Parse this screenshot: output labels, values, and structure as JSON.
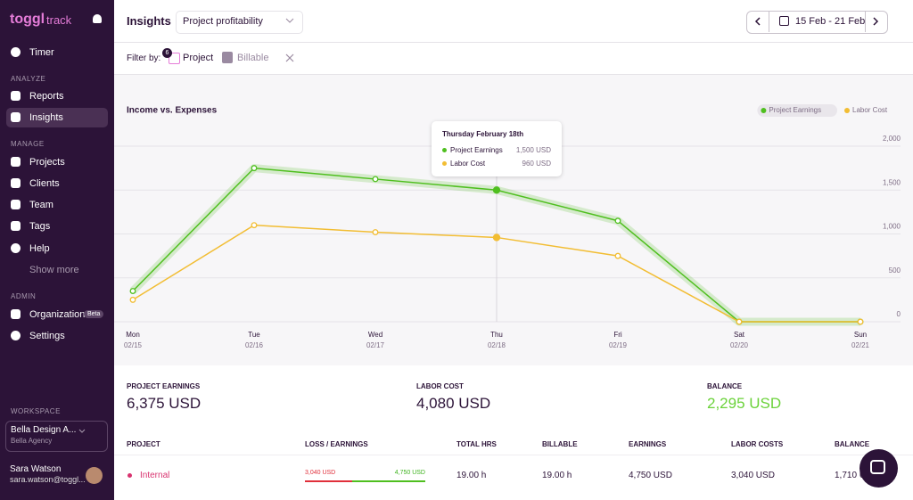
{
  "sidebar": {
    "logo": "toggl",
    "logo_sub": "track",
    "timer": "Timer",
    "sections": [
      {
        "title": "ANALYZE",
        "items": [
          "Reports",
          "Insights"
        ]
      },
      {
        "title": "MANAGE",
        "items": [
          "Projects",
          "Clients",
          "Team",
          "Tags",
          "Help",
          "Show more"
        ]
      },
      {
        "title": "ADMIN",
        "items": [
          "Organization",
          "Settings"
        ]
      }
    ],
    "beta": "Beta",
    "workspace_label": "WORKSPACE",
    "workspace_name": "Bella Design A...",
    "workspace_org": "Bella Agency",
    "user_name": "Sara Watson",
    "user_email": "sara.watson@toggl..."
  },
  "header": {
    "title": "Insights",
    "report": "Project profitability",
    "date_range": "15 Feb - 21 Feb",
    "filter_label": "Filter by:",
    "filter_count": "6",
    "filter_project": "Project",
    "filter_billable": "Billable"
  },
  "chart_data": {
    "type": "line",
    "title": "Income vs. Expenses",
    "categories": [
      "Mon",
      "Tue",
      "Wed",
      "Thu",
      "Fri",
      "Sat",
      "Sun"
    ],
    "dates": [
      "02/15",
      "02/16",
      "02/17",
      "02/18",
      "02/19",
      "02/20",
      "02/21"
    ],
    "series": [
      {
        "name": "Project Earnings",
        "color": "#4fbf1f",
        "values": [
          350,
          1750,
          1625,
          1500,
          1150,
          0,
          0
        ]
      },
      {
        "name": "Labor Cost",
        "color": "#f2bd33",
        "values": [
          250,
          1100,
          1020,
          960,
          750,
          0,
          0
        ]
      }
    ],
    "ylim": [
      0,
      2000
    ],
    "yticks": [
      0,
      500,
      {
        "value": 1000,
        "label": "1,000"
      },
      {
        "value": 1500,
        "label": "1,500"
      },
      {
        "value": 2000,
        "label": "2,000"
      }
    ],
    "grid": true,
    "legend": "top-right",
    "tooltip": {
      "title": "Thursday February 18th",
      "rows": [
        {
          "name": "Project Earnings",
          "value": "1,500 USD"
        },
        {
          "name": "Labor Cost",
          "value": "960 USD"
        }
      ]
    }
  },
  "summary": [
    {
      "label": "PROJECT EARNINGS",
      "value": "6,375 USD"
    },
    {
      "label": "LABOR COST",
      "value": "4,080 USD"
    },
    {
      "label": "BALANCE",
      "value": "2,295 USD"
    }
  ],
  "table": {
    "headers": [
      "PROJECT",
      "LOSS / EARNINGS",
      "TOTAL HRS",
      "BILLABLE",
      "EARNINGS",
      "LABOR COSTS",
      "BALANCE"
    ],
    "rows": [
      {
        "project": "Internal",
        "loss": "3,040 USD",
        "earnings_bar": "4,750 USD",
        "cells": [
          "19.00 h",
          "19.00 h",
          "4,750 USD",
          "3,040 USD",
          "1,710 USD"
        ]
      }
    ]
  }
}
